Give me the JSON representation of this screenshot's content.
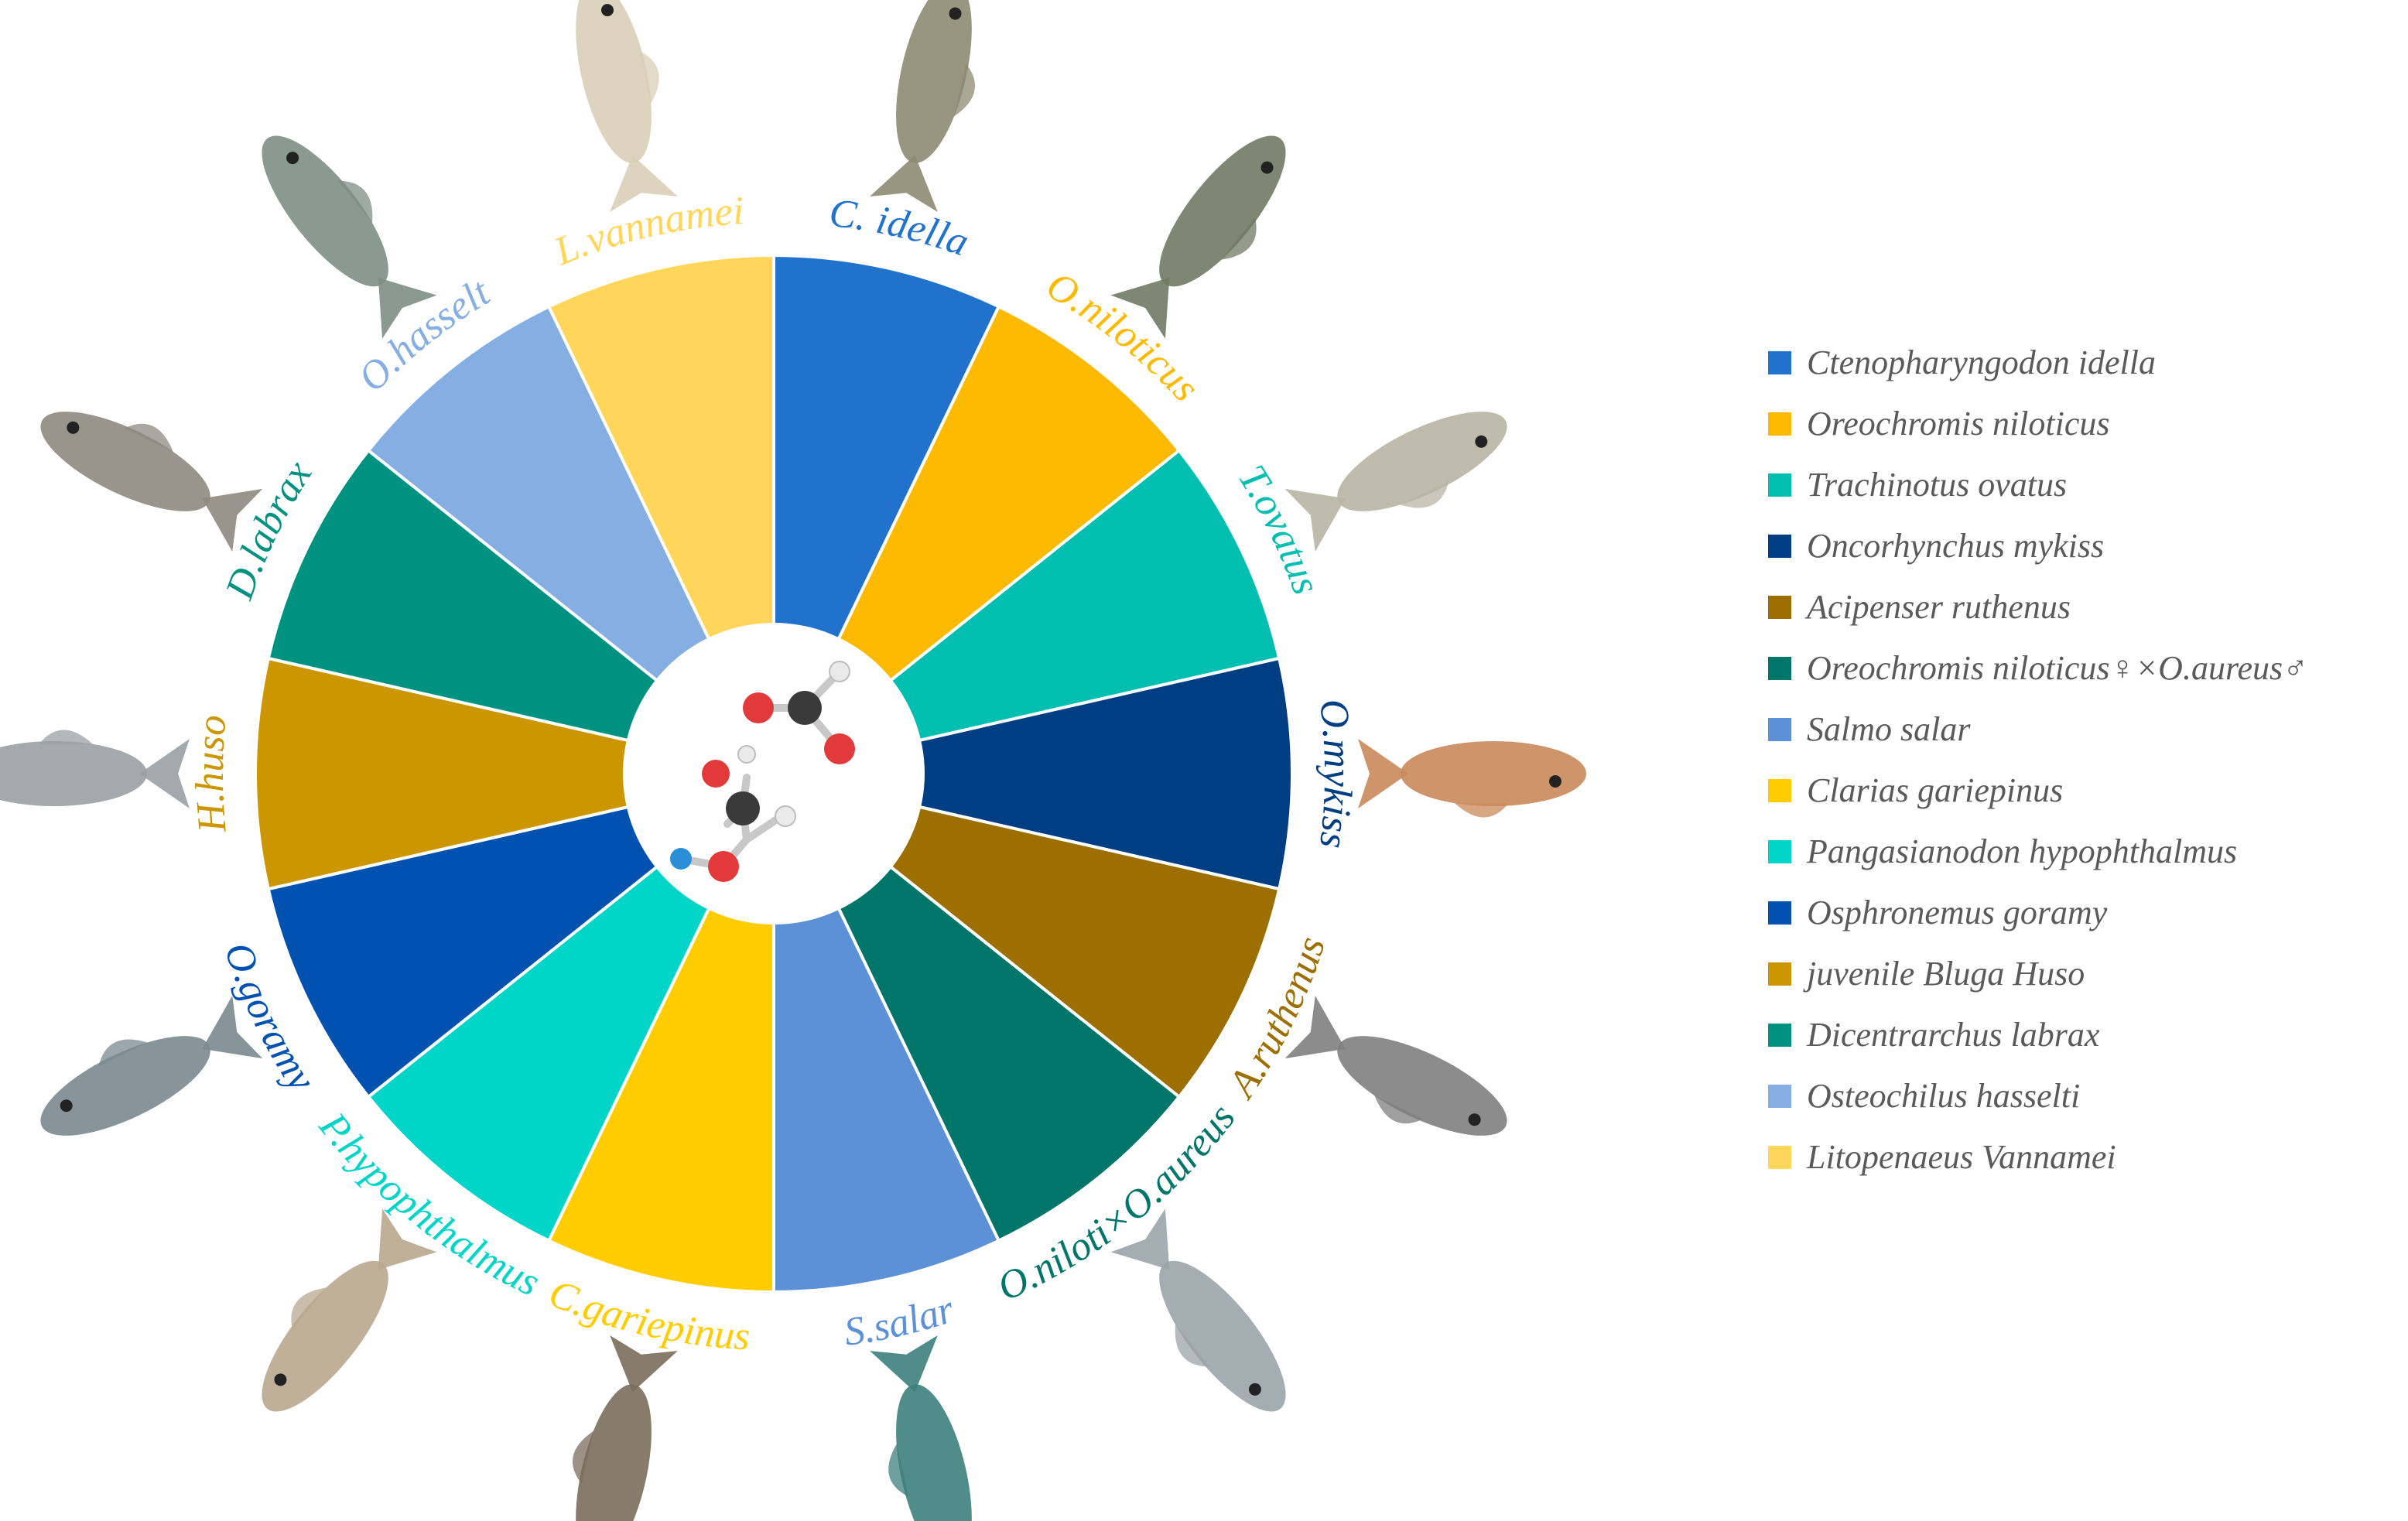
{
  "wheel": {
    "segments": [
      {
        "short": "C. idella",
        "color": "#2172CC"
      },
      {
        "short": "O.niloticus",
        "color": "#FDBA01"
      },
      {
        "short": "T.ovatus",
        "color": "#00BFB0"
      },
      {
        "short": "O.mykiss",
        "color": "#003E84"
      },
      {
        "short": "A.ruthenus",
        "color": "#9C6F00"
      },
      {
        "short": "O.niloti×O.aureus",
        "color": "#00756A"
      },
      {
        "short": "S.salar",
        "color": "#5D91D7"
      },
      {
        "short": "C.gariepinus",
        "color": "#FFCC00"
      },
      {
        "short": "P.hypophthalmus",
        "color": "#00D5C8"
      },
      {
        "short": "O.goramy",
        "color": "#0051B0"
      },
      {
        "short": "H.huso",
        "color": "#CC9600"
      },
      {
        "short": "D.labrax",
        "color": "#009280"
      },
      {
        "short": "O.hasselt",
        "color": "#85AEE2"
      },
      {
        "short": "L.vannamei",
        "color": "#FFD659"
      }
    ],
    "center_icon": "molecule-ball-and-stick-icon",
    "organism_icons": [
      "fish-photo-icon",
      "shrimp-photo-icon"
    ]
  },
  "legend": {
    "items": [
      {
        "label": "Ctenopharyngodon idella",
        "color": "#2172CC"
      },
      {
        "label": "Oreochromis niloticus",
        "color": "#FDBA01"
      },
      {
        "label": "Trachinotus ovatus",
        "color": "#00BFB0"
      },
      {
        "label": "Oncorhynchus mykiss",
        "color": "#003E84"
      },
      {
        "label": "Acipenser ruthenus",
        "color": "#9C6F00"
      },
      {
        "label": "Oreochromis niloticus♀×O.aureus♂",
        "color": "#00756A"
      },
      {
        "label": "Salmo salar",
        "color": "#5D91D7"
      },
      {
        "label": "Clarias gariepinus",
        "color": "#FFCC00"
      },
      {
        "label": "Pangasianodon hypophthalmus",
        "color": "#00D5C8"
      },
      {
        "label": "Osphronemus goramy",
        "color": "#0051B0"
      },
      {
        "label": "juvenile Bluga Huso",
        "color": "#CC9600"
      },
      {
        "label": "Dicentrarchus labrax",
        "color": "#009280"
      },
      {
        "label": "Osteochilus hasselti",
        "color": "#85AEE2"
      },
      {
        "label": "Litopenaeus Vannamei",
        "color": "#FFD659"
      }
    ]
  }
}
